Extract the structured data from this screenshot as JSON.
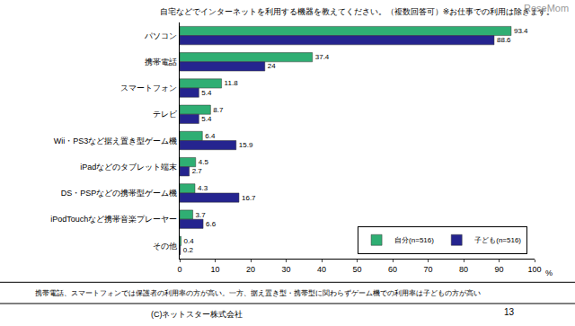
{
  "chart_data": {
    "type": "bar",
    "orientation": "horizontal",
    "title": "自宅などでインターネットを利用する機器を教えてください。（複数回答可）※お仕事での利用は除きます。",
    "categories": [
      "パソコン",
      "携帯電話",
      "スマートフォン",
      "テレビ",
      "Wii・PS3など据え置き型ゲーム機",
      "iPadなどのタブレット端末",
      "DS・PSPなどの携帯型ゲーム機",
      "iPodTouchなど携帯音楽プレーヤー",
      "その他"
    ],
    "series": [
      {
        "name": "自分(n=516)",
        "color": "#2fae73",
        "values": [
          93.4,
          37.4,
          11.8,
          8.7,
          6.4,
          4.5,
          4.3,
          3.7,
          0.4
        ]
      },
      {
        "name": "子ども(n=516)",
        "color": "#25248f",
        "values": [
          88.6,
          24,
          5.4,
          5.4,
          15.9,
          2.7,
          16.7,
          6.6,
          0.2
        ]
      }
    ],
    "xlim": [
      0,
      100
    ],
    "xticks": [
      0,
      10,
      20,
      30,
      40,
      50,
      60,
      70,
      80,
      90,
      100
    ],
    "x_label": "%",
    "data_labels": true,
    "grid": false,
    "legend": "bottom right",
    "note": "携帯電話、スマートフォンでは保護者の利用率の方が高い。一方、据え置き型・携帯型に関わらずゲーム機での利用率は子どもの方が高い",
    "source": "(C)ネットスター株式会社",
    "page_number": "13",
    "watermark": "ReseMom"
  }
}
